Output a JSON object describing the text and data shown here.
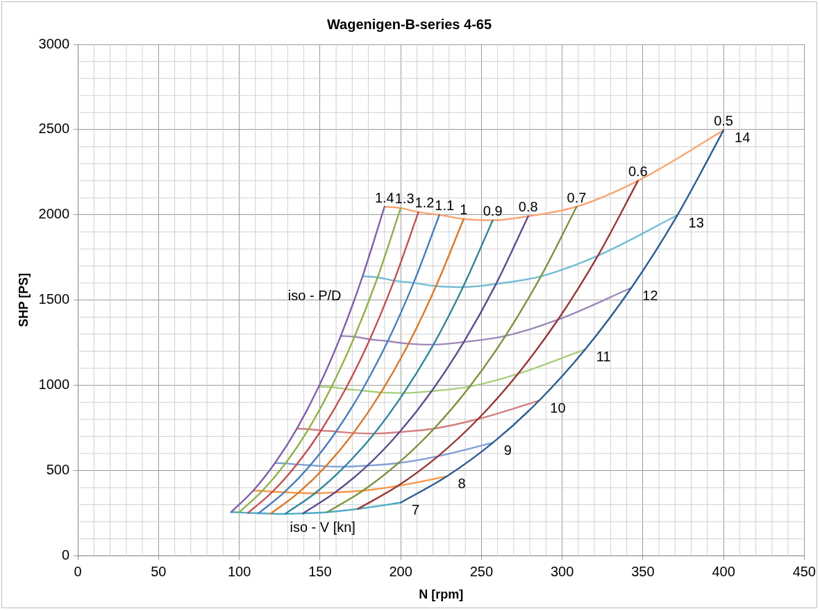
{
  "chart_data": {
    "type": "line",
    "title": "Wagenigen-B-series 4-65",
    "xlabel": "N [rpm]",
    "ylabel": "SHP [PS]",
    "xlim": [
      0,
      450
    ],
    "xticks": [
      0,
      50,
      100,
      150,
      200,
      250,
      300,
      350,
      400,
      450
    ],
    "ylim": [
      0,
      3000
    ],
    "yticks": [
      0,
      500,
      1000,
      1500,
      2000,
      2500,
      3000
    ],
    "grid": true,
    "legend": false,
    "marker": "none",
    "line_style": "solid",
    "annotations": [
      "iso - P/D",
      "iso - V [kn]"
    ],
    "series": [
      {
        "name": "1.4",
        "color": "#7f5fa8",
        "x": [
          95,
          108.6,
          122.1,
          135.7,
          149.3,
          162.9,
          176.4,
          190
        ],
        "values": [
          256,
          382,
          544,
          746,
          993,
          1290,
          1640,
          2048
        ]
      },
      {
        "name": "1.3",
        "color": "#8fb04a",
        "x": [
          100,
          114.3,
          128.6,
          142.9,
          157.1,
          171.4,
          185.7,
          200
        ],
        "values": [
          255,
          381,
          542,
          743,
          990,
          1285,
          1633,
          2040
        ]
      },
      {
        "name": "1.2",
        "color": "#c0504d",
        "x": [
          105.5,
          120.6,
          135.6,
          150.7,
          165.8,
          180.9,
          195.9,
          211
        ],
        "values": [
          252,
          376,
          536,
          735,
          978,
          1270,
          1614,
          2016
        ]
      },
      {
        "name": "1.1",
        "color": "#4a7ebb",
        "x": [
          112,
          128,
          144,
          160,
          176,
          192,
          208,
          224
        ],
        "values": [
          250,
          373,
          531,
          729,
          970,
          1259,
          1601,
          2000
        ]
      },
      {
        "name": "1",
        "color": "#d9782a",
        "x": [
          119.5,
          136.6,
          153.6,
          170.7,
          187.8,
          204.9,
          221.9,
          239
        ],
        "values": [
          247,
          369,
          525,
          720,
          958,
          1244,
          1582,
          1976
        ]
      },
      {
        "name": "0.9",
        "color": "#31859c",
        "x": [
          128.5,
          146.9,
          165.2,
          183.6,
          201.9,
          220.3,
          238.6,
          257
        ],
        "values": [
          246,
          367,
          523,
          717,
          955,
          1239,
          1576,
          1968
        ]
      },
      {
        "name": "0.8",
        "color": "#5f4b8b",
        "x": [
          139.5,
          159.4,
          179.4,
          199.3,
          219.2,
          239.1,
          259.1,
          279
        ],
        "values": [
          249,
          372,
          529,
          726,
          966,
          1254,
          1595,
          1992
        ]
      },
      {
        "name": "0.7",
        "color": "#77933c",
        "x": [
          154.5,
          176.6,
          198.6,
          220.7,
          242.8,
          264.9,
          286.9,
          309
        ],
        "values": [
          256,
          382,
          544,
          746,
          993,
          1290,
          1640,
          2048
        ]
      },
      {
        "name": "0.6",
        "color": "#953735",
        "x": [
          173.5,
          198.3,
          223.1,
          247.9,
          272.6,
          297.4,
          322.2,
          347
        ],
        "values": [
          275,
          410,
          584,
          802,
          1067,
          1385,
          1761,
          2200
        ]
      },
      {
        "name": "0.5",
        "color": "#2c5d8f",
        "x": [
          200,
          228.6,
          257.1,
          285.7,
          314.3,
          342.9,
          371.4,
          400
        ],
        "values": [
          312,
          466,
          663,
          910,
          1211,
          1572,
          1998,
          2496
        ]
      },
      {
        "name": "7",
        "color": "#4bacc6",
        "x": [
          95,
          100,
          105.5,
          112,
          119.5,
          128.5,
          139.5,
          154.5,
          173.5,
          200
        ],
        "values": [
          256,
          255,
          252,
          250,
          247,
          246,
          249,
          256,
          275,
          312
        ]
      },
      {
        "name": "8",
        "color": "#f79646",
        "x": [
          108.6,
          114.3,
          120.6,
          128,
          136.6,
          146.9,
          159.4,
          176.6,
          198.3,
          228.6
        ],
        "values": [
          382,
          381,
          376,
          373,
          369,
          367,
          372,
          382,
          410,
          466
        ]
      },
      {
        "name": "9",
        "color": "#7f9fd6",
        "x": [
          122.1,
          128.6,
          135.6,
          144,
          153.6,
          165.2,
          179.4,
          198.6,
          223.1,
          257.1
        ],
        "values": [
          544,
          542,
          536,
          531,
          525,
          523,
          529,
          544,
          584,
          663
        ]
      },
      {
        "name": "10",
        "color": "#d47f7f",
        "x": [
          135.7,
          142.9,
          150.7,
          160,
          170.7,
          183.6,
          199.3,
          220.7,
          247.9,
          285.7
        ],
        "values": [
          746,
          743,
          735,
          729,
          720,
          717,
          726,
          746,
          802,
          910
        ]
      },
      {
        "name": "11",
        "color": "#a9cd7c",
        "x": [
          149.3,
          157.1,
          165.8,
          176,
          187.8,
          201.9,
          219.2,
          242.8,
          272.6,
          314.3
        ],
        "values": [
          993,
          990,
          978,
          970,
          958,
          955,
          966,
          993,
          1067,
          1211
        ]
      },
      {
        "name": "12",
        "color": "#9d87b8",
        "x": [
          162.9,
          171.4,
          180.9,
          192,
          204.9,
          220.3,
          239.1,
          264.9,
          297.4,
          342.9
        ],
        "values": [
          1290,
          1285,
          1270,
          1259,
          1244,
          1239,
          1254,
          1290,
          1385,
          1572
        ]
      },
      {
        "name": "13",
        "color": "#74bcd3",
        "x": [
          176.4,
          185.7,
          195.9,
          208,
          221.9,
          238.6,
          259.1,
          286.9,
          322.2,
          371.4
        ],
        "values": [
          1640,
          1633,
          1614,
          1601,
          1582,
          1576,
          1595,
          1640,
          1761,
          1998
        ]
      },
      {
        "name": "14",
        "color": "#f9a572",
        "x": [
          190,
          200,
          211,
          224,
          239,
          257,
          279,
          309,
          347,
          400
        ],
        "values": [
          2048,
          2040,
          2016,
          2000,
          1976,
          1968,
          1992,
          2048,
          2200,
          2496
        ]
      }
    ]
  }
}
